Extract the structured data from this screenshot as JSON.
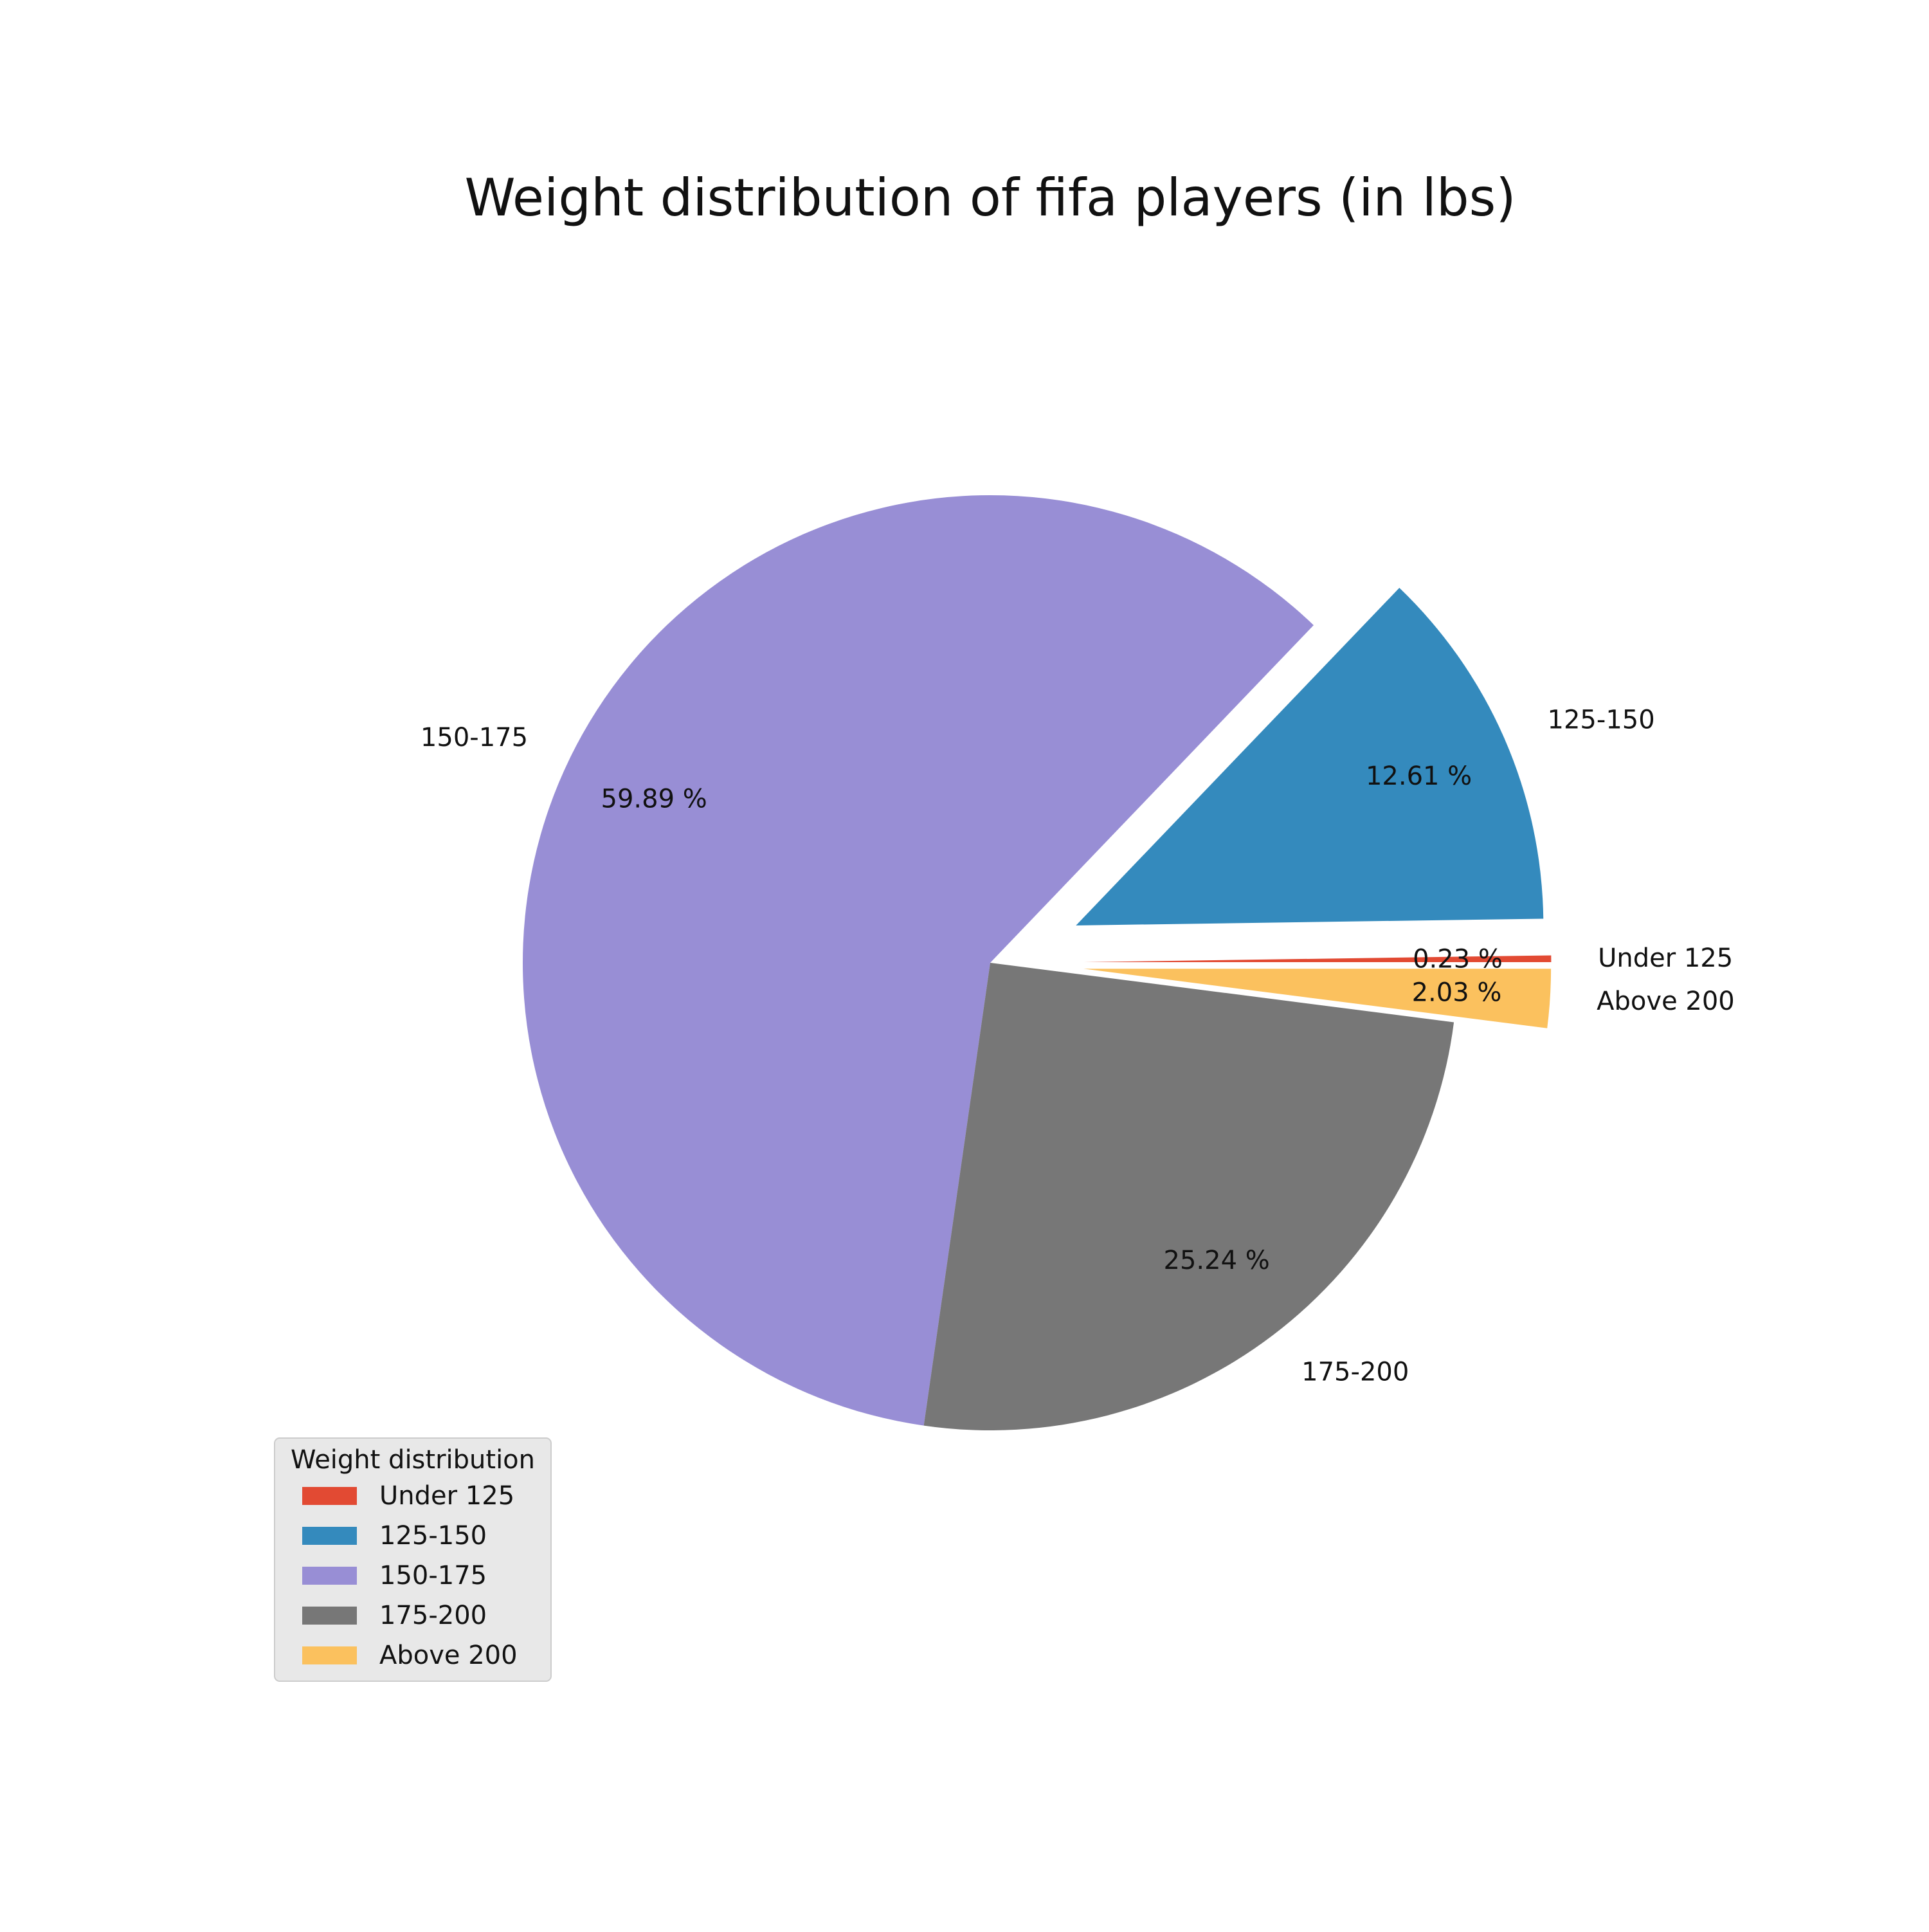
{
  "chart_data": {
    "type": "pie",
    "title": "Weight distribution of fifa players (in lbs)",
    "categories": [
      "Under 125",
      "125-150",
      "150-175",
      "175-200",
      "Above 200"
    ],
    "values": [
      0.23,
      12.61,
      59.89,
      25.24,
      2.03
    ],
    "value_labels": [
      "0.23 %",
      "12.61 %",
      "59.89 %",
      "25.24 %",
      "2.03 %"
    ],
    "colors": [
      "#E24A33",
      "#348ABD",
      "#988ED5",
      "#777777",
      "#FBC15E"
    ],
    "exploded": [
      "Under 125",
      "125-150",
      "Above 200"
    ],
    "start_angle_deg": 0,
    "direction": "counterclockwise",
    "legend": {
      "title": "Weight distribution",
      "placement": "lower-left",
      "entries": [
        "Under 125",
        "125-150",
        "150-175",
        "175-200",
        "Above 200"
      ]
    }
  }
}
